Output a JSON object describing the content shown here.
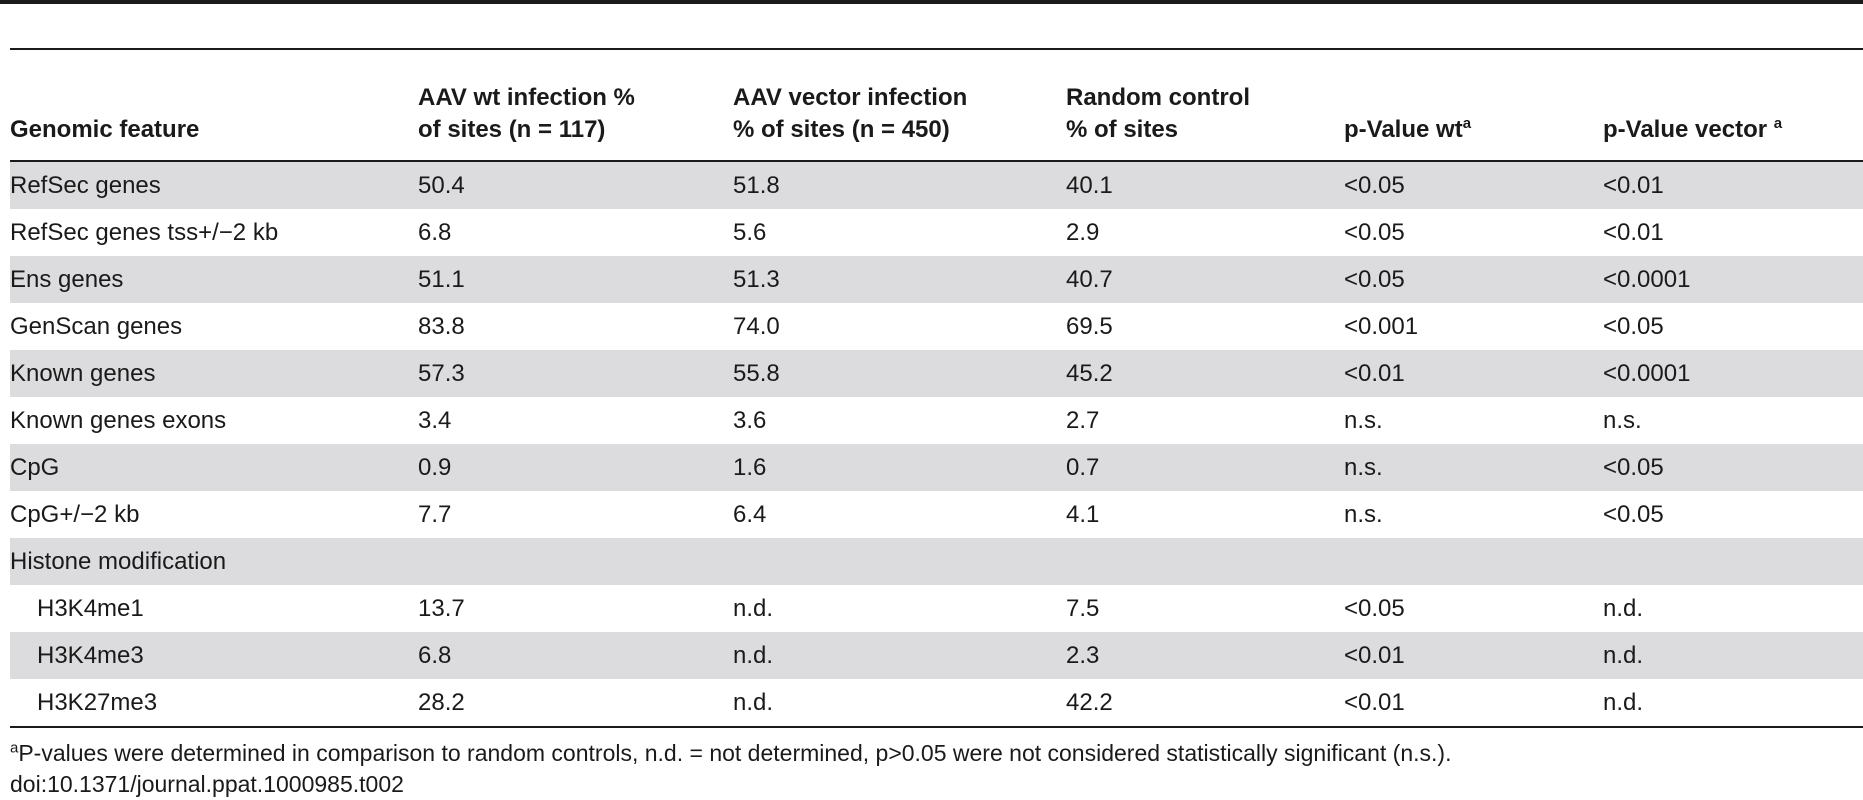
{
  "table": {
    "headers": [
      {
        "line1": "",
        "line2": "Genomic feature",
        "sup": ""
      },
      {
        "line1": "AAV wt infection %",
        "line2": "of sites (n = 117)",
        "sup": ""
      },
      {
        "line1": "AAV vector infection",
        "line2": "% of sites (n = 450)",
        "sup": ""
      },
      {
        "line1": "Random control",
        "line2": "% of sites",
        "sup": ""
      },
      {
        "line1": "",
        "line2": "p-Value wt",
        "sup": "a"
      },
      {
        "line1": "",
        "line2": "p-Value vector ",
        "sup": "a"
      }
    ],
    "rows": [
      [
        "RefSec genes",
        "50.4",
        "51.8",
        "40.1",
        "<0.05",
        "<0.01"
      ],
      [
        "RefSec genes tss+/−2 kb",
        "6.8",
        "5.6",
        "2.9",
        "<0.05",
        "<0.01"
      ],
      [
        "Ens genes",
        "51.1",
        "51.3",
        "40.7",
        "<0.05",
        "<0.0001"
      ],
      [
        "GenScan genes",
        "83.8",
        "74.0",
        "69.5",
        "<0.001",
        "<0.05"
      ],
      [
        "Known genes",
        "57.3",
        "55.8",
        "45.2",
        "<0.01",
        "<0.0001"
      ],
      [
        "Known genes exons",
        "3.4",
        "3.6",
        "2.7",
        "n.s.",
        "n.s."
      ],
      [
        "CpG",
        "0.9",
        "1.6",
        "0.7",
        "n.s.",
        "<0.05"
      ],
      [
        "CpG+/−2 kb",
        "7.7",
        "6.4",
        "4.1",
        "n.s.",
        "<0.05"
      ],
      [
        "Histone modification",
        "",
        "",
        "",
        "",
        ""
      ],
      [
        "H3K4me1",
        "13.7",
        "n.d.",
        "7.5",
        "<0.05",
        "n.d."
      ],
      [
        "H3K4me3",
        "6.8",
        "n.d.",
        "2.3",
        "<0.01",
        "n.d."
      ],
      [
        "H3K27me3",
        "28.2",
        "n.d.",
        "42.2",
        "<0.01",
        "n.d."
      ]
    ]
  },
  "footnote": {
    "marker": "a",
    "text": "P-values were determined in comparison to random controls, n.d. = not determined, p>0.05 were not considered statistically significant (n.s.)."
  },
  "doi": "doi:10.1371/journal.ppat.1000985.t002"
}
